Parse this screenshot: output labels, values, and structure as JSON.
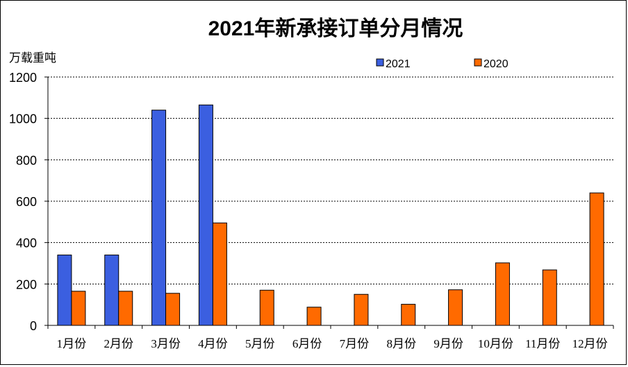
{
  "chart_data": {
    "type": "bar",
    "title": "2021年新承接订单分月情况",
    "ylabel": "万载重吨",
    "xlabel": "",
    "ylim": [
      0,
      1200
    ],
    "yticks": [
      0,
      200,
      400,
      600,
      800,
      1000,
      1200
    ],
    "grid": true,
    "legend_position": "top-right",
    "categories": [
      "1月份",
      "2月份",
      "3月份",
      "4月份",
      "5月份",
      "6月份",
      "7月份",
      "8月份",
      "9月份",
      "10月份",
      "11月份",
      "12月份"
    ],
    "series": [
      {
        "name": "2021",
        "color": "#3b5fe0",
        "values": [
          340,
          340,
          1040,
          1065,
          null,
          null,
          null,
          null,
          null,
          null,
          null,
          null
        ]
      },
      {
        "name": "2020",
        "color": "#ff6a00",
        "values": [
          165,
          165,
          155,
          495,
          170,
          88,
          150,
          102,
          172,
          302,
          268,
          640
        ]
      }
    ]
  }
}
